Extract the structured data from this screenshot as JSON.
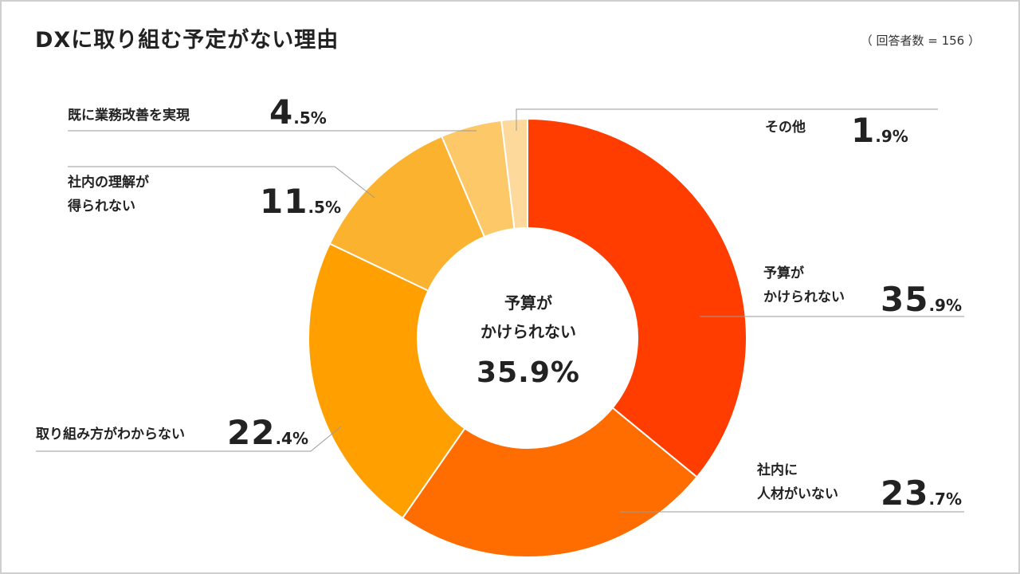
{
  "header": {
    "title": "DXに取り組む予定がない理由",
    "note": "（ 回答者数 = 156 ）"
  },
  "center": {
    "label_line1": "予算が",
    "label_line2": "かけられない",
    "value": "35.9%"
  },
  "labels": {
    "budget_l1": "予算が",
    "budget_l2": "かけられない",
    "budget_int": "35",
    "budget_dec": ".9%",
    "staff_l1": "社内に",
    "staff_l2": "人材がいない",
    "staff_int": "23",
    "staff_dec": ".7%",
    "howto_l1": "取り組み方がわからない",
    "howto_int": "22",
    "howto_dec": ".4%",
    "understand_l1": "社内の理解が",
    "understand_l2": "得られない",
    "understand_int": "11",
    "understand_dec": ".5%",
    "already_l1": "既に業務改善を実現",
    "already_int": "4",
    "already_dec": ".5%",
    "other_l1": "その他",
    "other_int": "1",
    "other_dec": ".9%"
  },
  "chart_data": {
    "type": "pie",
    "title": "DXに取り組む予定がない理由",
    "subtitle": "（ 回答者数 = 156 ）",
    "unit": "%",
    "donut": true,
    "start": "12 o'clock, clockwise",
    "categories": [
      "予算がかけられない",
      "社内に人材がいない",
      "取り組み方がわからない",
      "社内の理解が得られない",
      "既に業務改善を実現",
      "その他"
    ],
    "values": [
      35.9,
      23.7,
      22.4,
      11.5,
      4.5,
      1.9
    ],
    "colors": [
      "#ff3d00",
      "#ff6d00",
      "#ffa000",
      "#fbb22f",
      "#fcc868",
      "#fdd99c"
    ]
  }
}
